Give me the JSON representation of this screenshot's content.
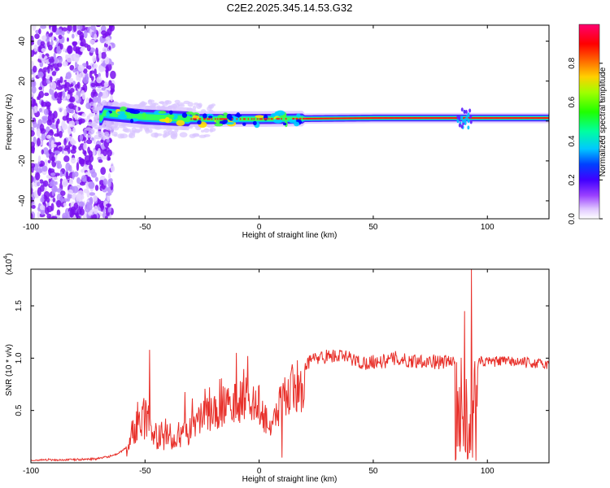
{
  "title": "C2E2.2025.345.14.53.G32",
  "chart_data": [
    {
      "type": "heatmap",
      "title": "C2E2.2025.345.14.53.G32",
      "xlabel": "Height of straight line (km)",
      "ylabel": "Frequency (Hz)",
      "xlim": [
        -100,
        127
      ],
      "ylim": [
        -49,
        48
      ],
      "x_ticks": [
        "-100",
        "-50",
        "0",
        "50",
        "100"
      ],
      "y_ticks": [
        "-40",
        "-20",
        "0",
        "20",
        "40"
      ],
      "colorbar": {
        "label": "Normalized spectral amplitude",
        "range": [
          0,
          1
        ],
        "ticks": [
          "0.0",
          "0.2",
          "0.4",
          "0.6",
          "0.8"
        ],
        "colormap": [
          "#ffffff",
          "#d8b8ff",
          "#8000ff",
          "#0000ff",
          "#00c8ff",
          "#00ff80",
          "#40ff00",
          "#c8ff00",
          "#ffc000",
          "#ff6000",
          "#ff0000",
          "#ff0060"
        ]
      },
      "carrier": {
        "description_values": {
          "noise_region_x": [
            -100,
            -68
          ],
          "line_frequency_at_x": [
            [
              -68,
              4
            ],
            [
              -50,
              2
            ],
            [
              -30,
              1
            ],
            [
              0,
              1
            ],
            [
              50,
              1.5
            ],
            [
              88,
              1.5
            ],
            [
              92,
              1.5
            ],
            [
              127,
              1.5
            ]
          ]
        }
      }
    },
    {
      "type": "line",
      "xlabel": "Height of straight line (km)",
      "ylabel": "SNR (10 * v/v)",
      "y_multiplier_label": "(x10",
      "y_multiplier_exp": "4",
      "y_multiplier_close": ")",
      "xlim": [
        -100,
        127
      ],
      "ylim": [
        0,
        1.85
      ],
      "x_ticks": [
        "-100",
        "-50",
        "0",
        "50",
        "100"
      ],
      "y_ticks": [
        "0.5",
        "1.0",
        "1.5"
      ],
      "color": "#e8302a",
      "series": [
        {
          "name": "",
          "x": [
            -100,
            -80,
            -70,
            -62,
            -58,
            -55,
            -52,
            -50,
            -48,
            -45,
            -40,
            -35,
            -30,
            -25,
            -20,
            -15,
            -10,
            -5,
            0,
            5,
            10,
            15,
            20,
            25,
            30,
            35,
            40,
            45,
            50,
            55,
            60,
            65,
            70,
            75,
            80,
            85,
            88,
            90,
            92,
            93,
            95,
            100,
            105,
            110,
            115,
            120,
            127
          ],
          "values": [
            0.02,
            0.03,
            0.04,
            0.08,
            0.15,
            0.45,
            0.55,
            0.6,
            0.5,
            0.35,
            0.3,
            0.3,
            0.45,
            0.55,
            0.6,
            0.7,
            0.75,
            0.8,
            0.7,
            0.45,
            0.75,
            0.9,
            0.95,
            1.0,
            1.02,
            1.02,
            1.0,
            0.95,
            0.97,
            0.97,
            1.0,
            0.97,
            0.98,
            0.97,
            0.96,
            0.97,
            0.95,
            0.9,
            0.6,
            0.95,
            0.97,
            0.96,
            0.97,
            0.97,
            0.96,
            0.95,
            0.94
          ],
          "peaks": [
            [
              -48,
              1.08
            ],
            [
              -10,
              1.05
            ],
            [
              -5,
              1.02
            ],
            [
              10,
              0.05
            ],
            [
              90,
              1.45
            ],
            [
              93,
              1.85
            ],
            [
              93.5,
              0.05
            ]
          ]
        }
      ]
    }
  ]
}
